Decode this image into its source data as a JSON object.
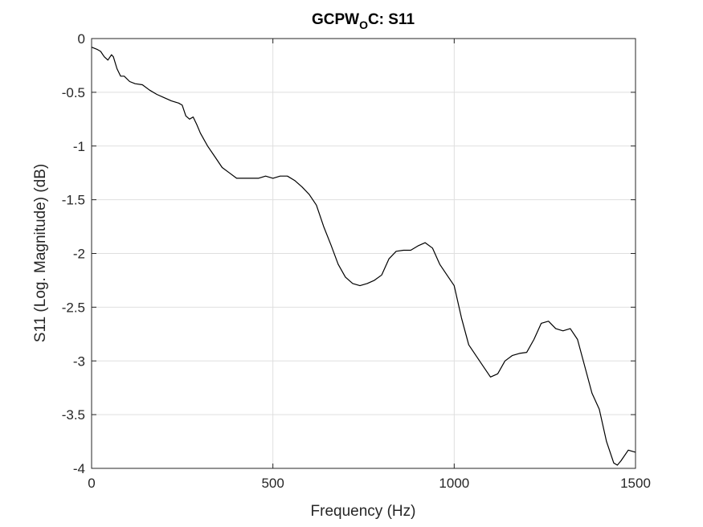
{
  "chart_data": {
    "type": "line",
    "title": {
      "main": "GCPW",
      "subscript": "O",
      "rest": "C: S11"
    },
    "xlabel": "Frequency (Hz)",
    "ylabel": "S11 (Log. Magnitude) (dB)",
    "xlim": [
      0,
      1500
    ],
    "ylim": [
      -4,
      0
    ],
    "xticks": [
      0,
      500,
      1000,
      1500
    ],
    "xtick_labels": [
      "0",
      "500",
      "1000",
      "1500"
    ],
    "yticks": [
      0,
      -0.5,
      -1,
      -1.5,
      -2,
      -2.5,
      -3,
      -3.5,
      -4
    ],
    "ytick_labels": [
      "0",
      "-0.5",
      "-1",
      "-1.5",
      "-2",
      "-2.5",
      "-3",
      "-3.5",
      "-4"
    ],
    "grid": true,
    "line_color": "#000000",
    "series": [
      {
        "x": [
          0,
          15,
          25,
          35,
          45,
          55,
          60,
          70,
          80,
          90,
          105,
          120,
          140,
          160,
          180,
          200,
          220,
          240,
          250,
          260,
          270,
          280,
          290,
          300,
          320,
          340,
          360,
          380,
          400,
          420,
          440,
          460,
          480,
          500,
          520,
          540,
          560,
          580,
          600,
          620,
          640,
          660,
          680,
          700,
          720,
          740,
          760,
          780,
          800,
          820,
          840,
          860,
          880,
          900,
          920,
          940,
          960,
          980,
          1000,
          1020,
          1040,
          1060,
          1080,
          1100,
          1120,
          1140,
          1160,
          1180,
          1200,
          1220,
          1240,
          1260,
          1280,
          1300,
          1320,
          1340,
          1360,
          1380,
          1400,
          1420,
          1440,
          1450,
          1460,
          1480,
          1500
        ],
        "y": [
          -0.08,
          -0.1,
          -0.12,
          -0.17,
          -0.2,
          -0.15,
          -0.17,
          -0.28,
          -0.35,
          -0.35,
          -0.4,
          -0.42,
          -0.43,
          -0.48,
          -0.52,
          -0.55,
          -0.58,
          -0.6,
          -0.62,
          -0.72,
          -0.75,
          -0.73,
          -0.8,
          -0.88,
          -1.0,
          -1.1,
          -1.2,
          -1.25,
          -1.3,
          -1.3,
          -1.3,
          -1.3,
          -1.28,
          -1.3,
          -1.28,
          -1.28,
          -1.32,
          -1.38,
          -1.45,
          -1.55,
          -1.75,
          -1.92,
          -2.1,
          -2.22,
          -2.28,
          -2.3,
          -2.28,
          -2.25,
          -2.2,
          -2.05,
          -1.98,
          -1.97,
          -1.97,
          -1.93,
          -1.9,
          -1.95,
          -2.1,
          -2.2,
          -2.3,
          -2.6,
          -2.85,
          -2.95,
          -3.05,
          -3.15,
          -3.12,
          -3.0,
          -2.95,
          -2.93,
          -2.92,
          -2.8,
          -2.65,
          -2.63,
          -2.7,
          -2.72,
          -2.7,
          -2.8,
          -3.05,
          -3.3,
          -3.45,
          -3.75,
          -3.95,
          -3.97,
          -3.93,
          -3.83,
          -3.85
        ]
      }
    ]
  }
}
